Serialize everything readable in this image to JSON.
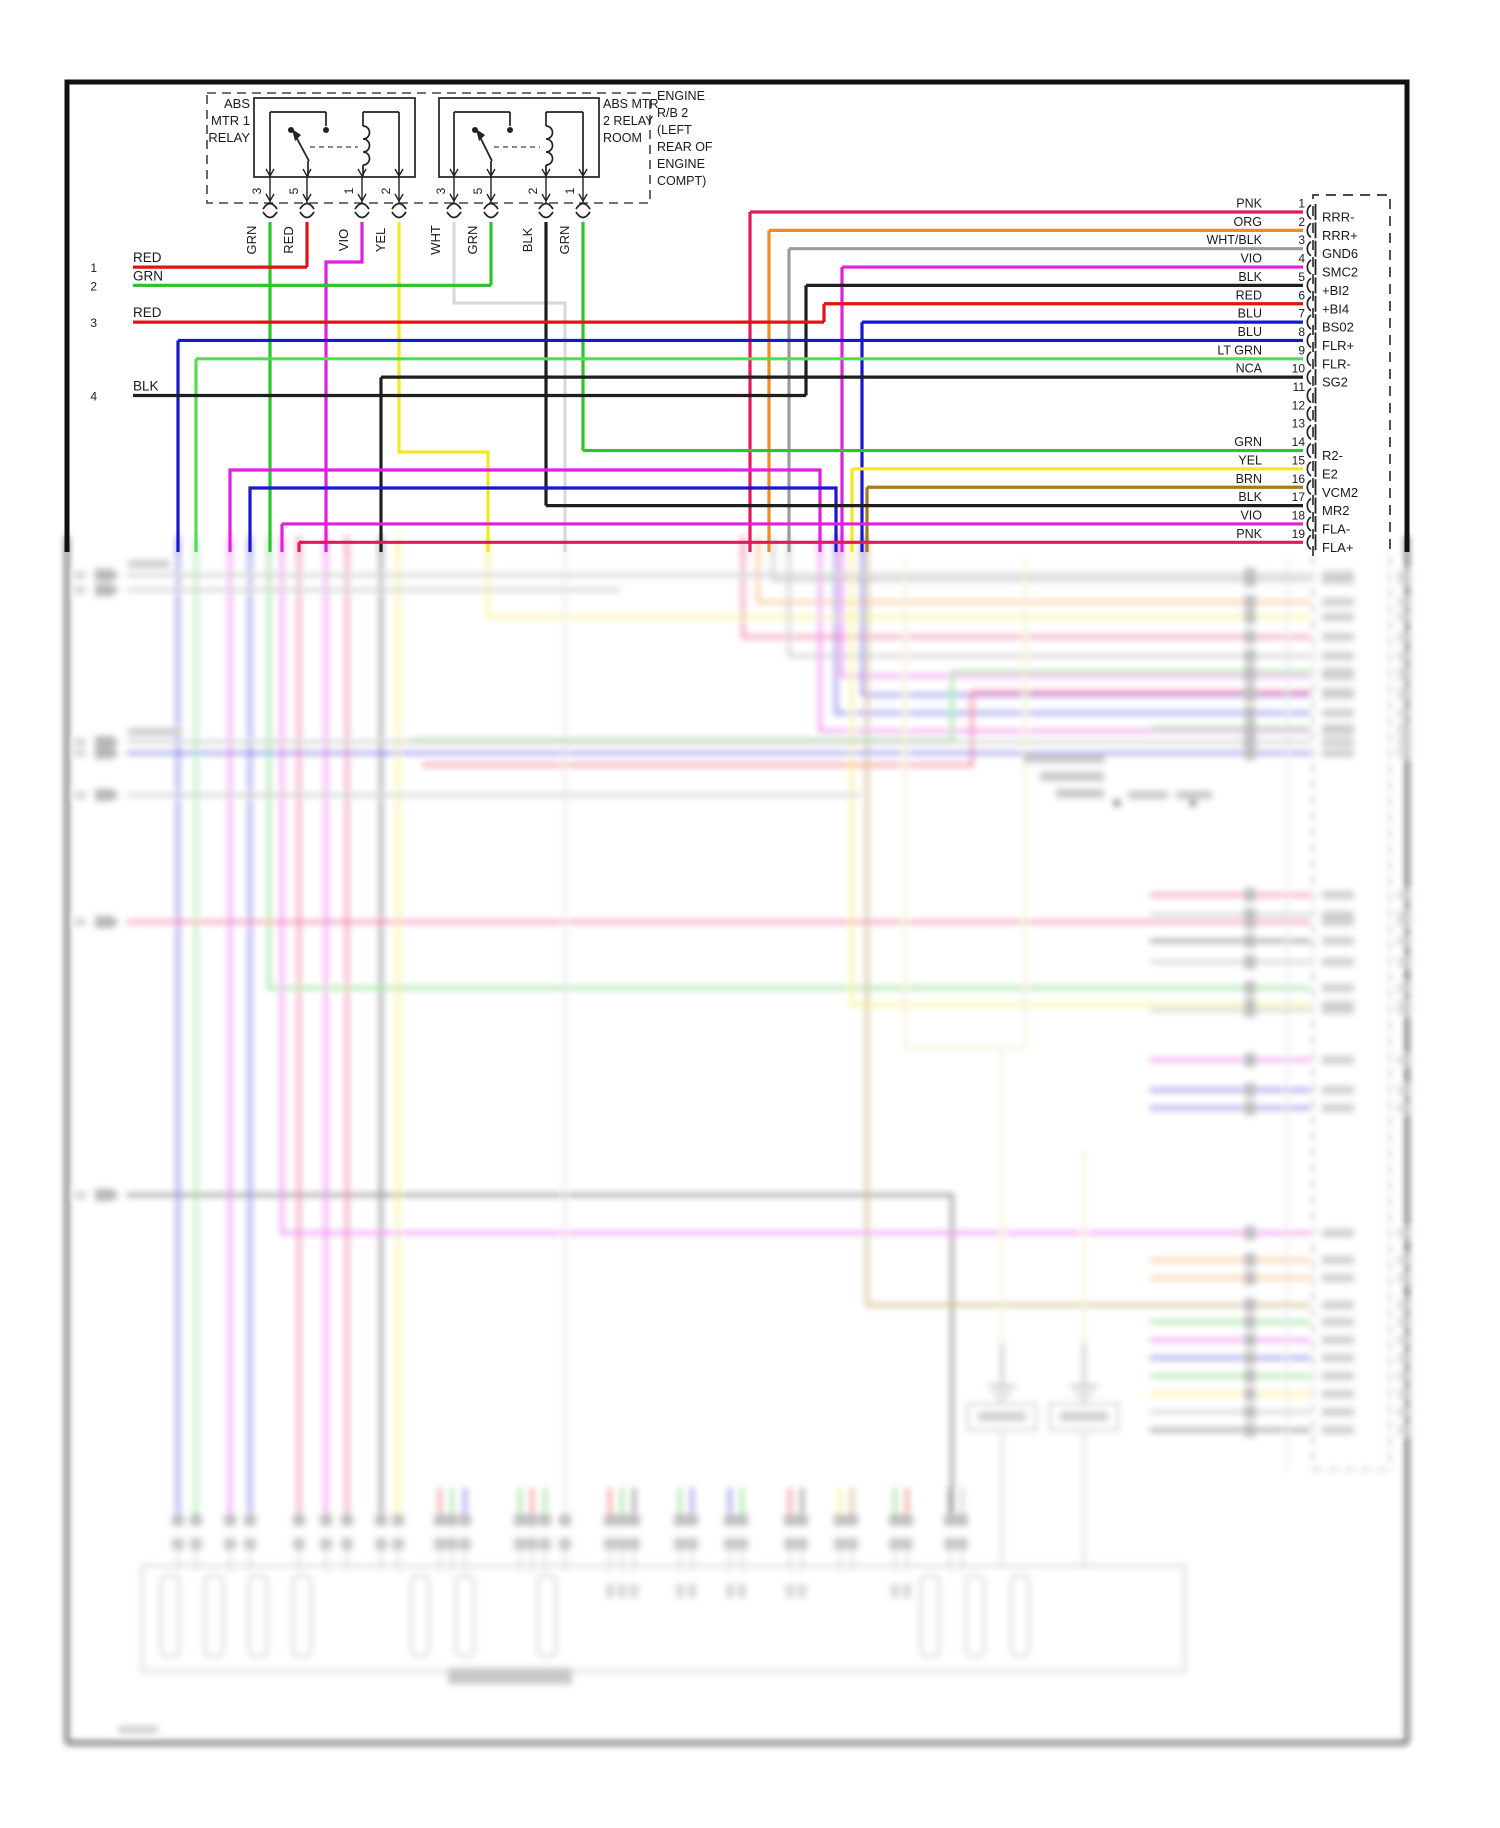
{
  "colors": {
    "GRN": "#2dc42d",
    "LT_GRN": "#52dc52",
    "RED": "#e11414",
    "VIO": "#e01fe0",
    "YEL": "#f2e824",
    "WHT": "#d9d9d9",
    "BLK": "#1f1f1f",
    "PNK": "#e2195c",
    "ORG": "#f08c1e",
    "WHT_BLK": "#9b9b9b",
    "BLU": "#1717d2",
    "BRN": "#a57a18",
    "NCA": "#1f1f1f"
  },
  "relays": {
    "relay1": {
      "label_lines": [
        "ABS",
        "MTR 1",
        "RELAY"
      ],
      "pins": [
        {
          "num": "3",
          "label": "GRN",
          "wire": "GRN"
        },
        {
          "num": "5",
          "label": "RED",
          "wire": "RED"
        },
        {
          "num": "1",
          "label": "VIO",
          "wire": "VIO"
        },
        {
          "num": "2",
          "label": "YEL",
          "wire": "YEL"
        }
      ]
    },
    "relay2": {
      "label_lines": [
        "ABS MTR",
        "2 RELAY",
        "ROOM"
      ],
      "pins": [
        {
          "num": "3",
          "label": "WHT",
          "wire": "WHT"
        },
        {
          "num": "5",
          "label": "GRN",
          "wire": "GRN"
        },
        {
          "num": "2",
          "label": "BLK",
          "wire": "BLK"
        },
        {
          "num": "1",
          "label": "GRN",
          "wire": "GRN"
        }
      ]
    },
    "location_lines": [
      "ENGINE",
      "R/B 2",
      "(LEFT",
      "REAR OF",
      "ENGINE",
      "COMPT)"
    ]
  },
  "left_wires": [
    {
      "num": "1",
      "label": "RED",
      "wire": "RED"
    },
    {
      "num": "2",
      "label": "GRN",
      "wire": "GRN"
    },
    {
      "num": "3",
      "label": "RED",
      "wire": "RED"
    },
    {
      "num": "4",
      "label": "BLK",
      "wire": "BLK"
    }
  ],
  "ecu_connector": {
    "pins": [
      {
        "num": "1",
        "label": "PNK",
        "wire": "PNK",
        "terminal": "RRR-"
      },
      {
        "num": "2",
        "label": "ORG",
        "wire": "ORG",
        "terminal": "RRR+"
      },
      {
        "num": "3",
        "label": "WHT/BLK",
        "wire": "WHT_BLK",
        "terminal": "GND6"
      },
      {
        "num": "4",
        "label": "VIO",
        "wire": "VIO",
        "terminal": "SMC2"
      },
      {
        "num": "5",
        "label": "BLK",
        "wire": "BLK",
        "terminal": "+BI2"
      },
      {
        "num": "6",
        "label": "RED",
        "wire": "RED",
        "terminal": "+BI4"
      },
      {
        "num": "7",
        "label": "BLU",
        "wire": "BLU",
        "terminal": "BS02"
      },
      {
        "num": "8",
        "label": "BLU",
        "wire": "BLU",
        "terminal": "FLR+"
      },
      {
        "num": "9",
        "label": "LT GRN",
        "wire": "LT_GRN",
        "terminal": "FLR-"
      },
      {
        "num": "10",
        "label": "NCA",
        "wire": "NCA",
        "terminal": "SG2"
      },
      {
        "num": "11",
        "label": "",
        "wire": null,
        "terminal": ""
      },
      {
        "num": "12",
        "label": "",
        "wire": null,
        "terminal": ""
      },
      {
        "num": "13",
        "label": "",
        "wire": null,
        "terminal": ""
      },
      {
        "num": "14",
        "label": "GRN",
        "wire": "GRN",
        "terminal": "R2-"
      },
      {
        "num": "15",
        "label": "YEL",
        "wire": "YEL",
        "terminal": "E2"
      },
      {
        "num": "16",
        "label": "BRN",
        "wire": "BRN",
        "terminal": "VCM2"
      },
      {
        "num": "17",
        "label": "BLK",
        "wire": "BLK",
        "terminal": "MR2"
      },
      {
        "num": "18",
        "label": "VIO",
        "wire": "VIO",
        "terminal": "FLA-"
      },
      {
        "num": "19",
        "label": "PNK",
        "wire": "PNK",
        "terminal": "FLA+"
      }
    ]
  }
}
